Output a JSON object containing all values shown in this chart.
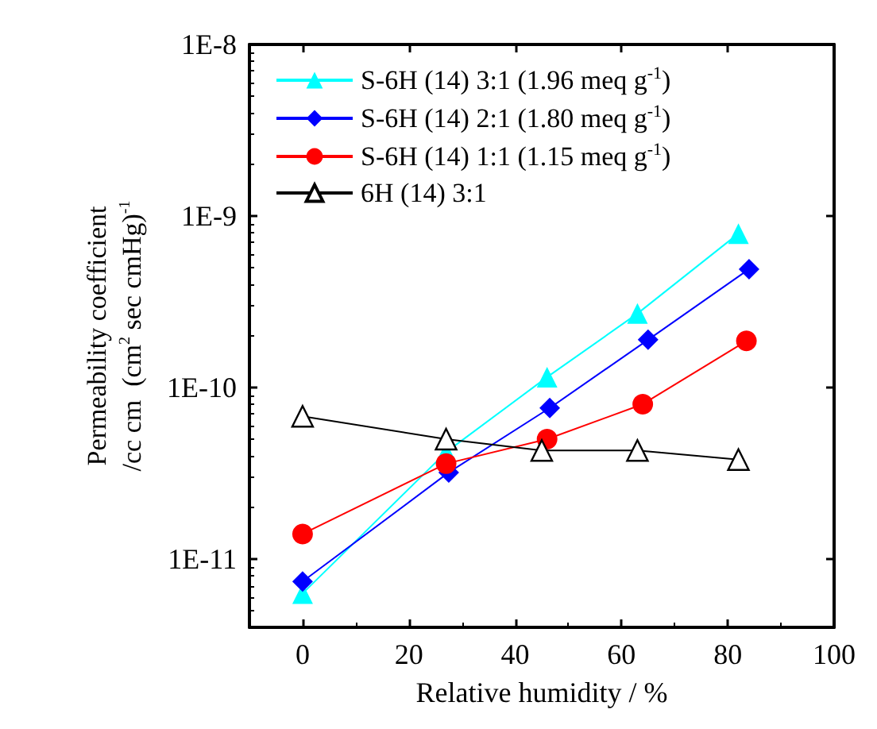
{
  "chart_data": {
    "type": "line",
    "xlabel": "Relative humidity / %",
    "ylabel": "Permeability coefficient\n/cc cm  (cm$^{2}$ sec cmHg)$^{-1}$",
    "log": "y",
    "xlim": [
      -10,
      100
    ],
    "xticks": [
      0,
      20,
      40,
      60,
      80,
      100
    ],
    "ylim": [
      4e-12,
      1e-08
    ],
    "yticks": [
      {
        "value": 1e-11,
        "label": "1E-11"
      },
      {
        "value": 1e-10,
        "label": "1E-10"
      },
      {
        "value": 1e-09,
        "label": "1E-9"
      },
      {
        "value": 1e-08,
        "label": "1E-8"
      }
    ],
    "legend": "top left",
    "grid": false,
    "series": [
      {
        "name": "S-6H (14) 3:1 (1.96 meq g$^{-1}$)",
        "color": "#00ffff",
        "marker": "triangle",
        "x": [
          0,
          27,
          46,
          63,
          82
        ],
        "values": [
          6.3e-12,
          4.2e-11,
          1.15e-10,
          2.7e-10,
          7.9e-10
        ]
      },
      {
        "name": "S-6H (14) 2:1 (1.80 meq g$^{-1}$)",
        "color": "#0000ff",
        "marker": "diamond",
        "x": [
          0,
          27.5,
          46.5,
          65,
          84
        ],
        "values": [
          7.4e-12,
          3.2e-11,
          7.6e-11,
          1.9e-10,
          4.9e-10
        ]
      },
      {
        "name": "S-6H (14) 1:1 (1.15 meq g$^{-1}$)",
        "color": "#ff0000",
        "marker": "circle",
        "x": [
          0,
          27,
          46,
          64,
          83.5
        ],
        "values": [
          1.4e-11,
          3.6e-11,
          5e-11,
          8e-11,
          1.87e-10
        ]
      },
      {
        "name": "6H (14) 3:1",
        "color": "#000000",
        "marker": "triangle-open",
        "x": [
          0,
          27,
          45,
          63,
          82
        ],
        "values": [
          6.8e-11,
          5e-11,
          4.3e-11,
          4.3e-11,
          3.8e-11
        ]
      }
    ]
  }
}
